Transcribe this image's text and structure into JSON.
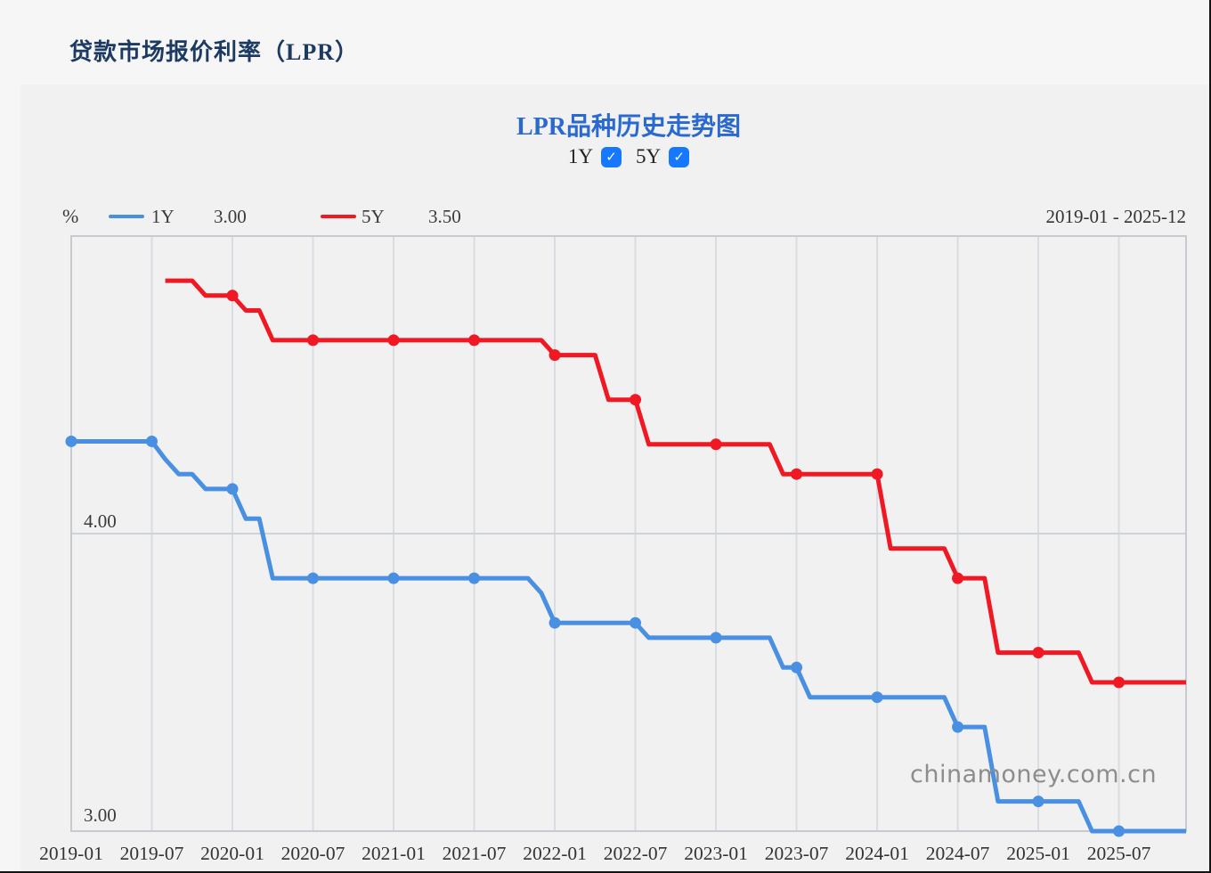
{
  "header": {
    "title": "贷款市场报价利率（LPR）"
  },
  "chart": {
    "title": "LPR品种历史走势图",
    "toggles": [
      {
        "label": "1Y",
        "checked": true
      },
      {
        "label": "5Y",
        "checked": true
      }
    ],
    "unit": "%",
    "legend": [
      {
        "name": "1Y",
        "value": "3.00",
        "color": "#4a90e2"
      },
      {
        "name": "5Y",
        "value": "3.50",
        "color": "#f01822"
      }
    ],
    "date_range": "2019-01 - 2025-12",
    "watermark": "chinamoney.com.cn",
    "accent_checkbox_color": "#1677ff",
    "check_glyph": "✓"
  },
  "chart_data": {
    "type": "line",
    "title": "LPR品种历史走势图",
    "unit": "%",
    "x_start": "2019-01",
    "x_end": "2025-12",
    "x_tick_labels": [
      "2019-01",
      "2019-07",
      "2020-01",
      "2020-07",
      "2021-01",
      "2021-07",
      "2022-01",
      "2022-07",
      "2023-01",
      "2023-07",
      "2024-01",
      "2024-07",
      "2025-01",
      "2025-07"
    ],
    "y_axis_labels": [
      "4.00",
      "3.00"
    ],
    "ylim": [
      3.0,
      5.0
    ],
    "grid": "vertical lines at each semiannual tick; horizontal line at 4.00; border at 3.00 and 5.00",
    "legend_position": "top-left inline with % unit and latest values",
    "markers": "dots at every semiannual tick (Jan and Jul)",
    "series": [
      {
        "name": "1Y",
        "color": "#4a90e2",
        "start_month": "2019-01",
        "monthly_values": [
          4.31,
          4.31,
          4.31,
          4.31,
          4.31,
          4.31,
          4.31,
          4.25,
          4.2,
          4.2,
          4.15,
          4.15,
          4.15,
          4.05,
          4.05,
          3.85,
          3.85,
          3.85,
          3.85,
          3.85,
          3.85,
          3.85,
          3.85,
          3.85,
          3.85,
          3.85,
          3.85,
          3.85,
          3.85,
          3.85,
          3.85,
          3.85,
          3.85,
          3.85,
          3.85,
          3.8,
          3.7,
          3.7,
          3.7,
          3.7,
          3.7,
          3.7,
          3.7,
          3.65,
          3.65,
          3.65,
          3.65,
          3.65,
          3.65,
          3.65,
          3.65,
          3.65,
          3.65,
          3.55,
          3.55,
          3.45,
          3.45,
          3.45,
          3.45,
          3.45,
          3.45,
          3.45,
          3.45,
          3.45,
          3.45,
          3.45,
          3.35,
          3.35,
          3.35,
          3.1,
          3.1,
          3.1,
          3.1,
          3.1,
          3.1,
          3.1,
          3.0,
          3.0,
          3.0,
          3.0,
          3.0,
          3.0,
          3.0,
          3.0
        ]
      },
      {
        "name": "5Y",
        "color": "#f01822",
        "start_month": "2019-08",
        "monthly_values": [
          4.85,
          4.85,
          4.85,
          4.8,
          4.8,
          4.8,
          4.75,
          4.75,
          4.65,
          4.65,
          4.65,
          4.65,
          4.65,
          4.65,
          4.65,
          4.65,
          4.65,
          4.65,
          4.65,
          4.65,
          4.65,
          4.65,
          4.65,
          4.65,
          4.65,
          4.65,
          4.65,
          4.65,
          4.65,
          4.6,
          4.6,
          4.6,
          4.6,
          4.45,
          4.45,
          4.45,
          4.3,
          4.3,
          4.3,
          4.3,
          4.3,
          4.3,
          4.3,
          4.3,
          4.3,
          4.3,
          4.2,
          4.2,
          4.2,
          4.2,
          4.2,
          4.2,
          4.2,
          4.2,
          3.95,
          3.95,
          3.95,
          3.95,
          3.95,
          3.85,
          3.85,
          3.85,
          3.6,
          3.6,
          3.6,
          3.6,
          3.6,
          3.6,
          3.6,
          3.5,
          3.5,
          3.5,
          3.5,
          3.5,
          3.5,
          3.5,
          3.5
        ]
      }
    ]
  }
}
